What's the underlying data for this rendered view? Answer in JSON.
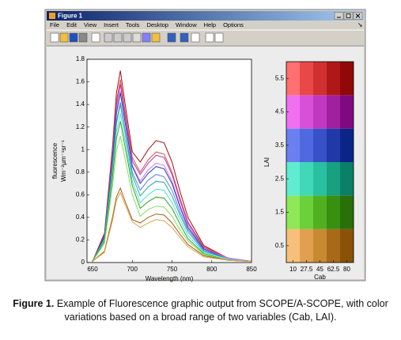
{
  "window": {
    "title": "Figure 1",
    "menu": [
      "File",
      "Edit",
      "View",
      "Insert",
      "Tools",
      "Desktop",
      "Window",
      "Help",
      "Options"
    ]
  },
  "chart_data": [
    {
      "type": "line",
      "xlabel": "Wavelength (nm)",
      "ylabel": [
        "fluorescence",
        "Wm⁻²µm⁻¹sr⁻¹"
      ],
      "x": [
        650,
        665,
        675,
        680,
        685,
        690,
        700,
        710,
        720,
        730,
        740,
        750,
        760,
        770,
        790,
        820,
        850
      ],
      "xlim": [
        643,
        850
      ],
      "xticks": [
        650,
        700,
        750,
        800,
        850
      ],
      "ylim": [
        0,
        1.8
      ],
      "yticks": [
        0,
        0.2,
        0.4,
        0.6,
        0.8,
        1,
        1.2,
        1.4,
        1.6,
        1.8
      ],
      "series": [
        {
          "color": "#a01010",
          "values": [
            0.01,
            0.26,
            1.02,
            1.5,
            1.7,
            1.45,
            0.98,
            0.89,
            1.0,
            1.08,
            1.06,
            0.89,
            0.63,
            0.4,
            0.15,
            0.04,
            0.01
          ]
        },
        {
          "color": "#e05050",
          "values": [
            0.01,
            0.24,
            0.97,
            1.43,
            1.62,
            1.38,
            0.93,
            0.8,
            0.91,
            0.98,
            0.96,
            0.8,
            0.57,
            0.36,
            0.14,
            0.04,
            0.01
          ]
        },
        {
          "color": "#b030b0",
          "values": [
            0.01,
            0.24,
            0.95,
            1.39,
            1.58,
            1.34,
            0.9,
            0.78,
            0.88,
            0.95,
            0.93,
            0.78,
            0.55,
            0.35,
            0.13,
            0.04,
            0.01
          ]
        },
        {
          "color": "#e070e0",
          "values": [
            0.01,
            0.23,
            0.91,
            1.34,
            1.52,
            1.29,
            0.86,
            0.72,
            0.82,
            0.88,
            0.86,
            0.72,
            0.51,
            0.33,
            0.12,
            0.04,
            0.01
          ]
        },
        {
          "color": "#2040c0",
          "values": [
            0.01,
            0.23,
            0.9,
            1.32,
            1.5,
            1.28,
            0.85,
            0.7,
            0.79,
            0.85,
            0.83,
            0.7,
            0.49,
            0.31,
            0.12,
            0.03,
            0.01
          ]
        },
        {
          "color": "#6080f0",
          "values": [
            0.01,
            0.21,
            0.85,
            1.25,
            1.42,
            1.21,
            0.8,
            0.64,
            0.73,
            0.78,
            0.76,
            0.64,
            0.45,
            0.29,
            0.11,
            0.03,
            0.01
          ]
        },
        {
          "color": "#20b0a0",
          "values": [
            0.01,
            0.21,
            0.84,
            1.23,
            1.4,
            1.19,
            0.77,
            0.59,
            0.67,
            0.72,
            0.71,
            0.59,
            0.42,
            0.27,
            0.1,
            0.03,
            0.01
          ]
        },
        {
          "color": "#50e0d0",
          "values": [
            0.01,
            0.2,
            0.79,
            1.16,
            1.32,
            1.12,
            0.72,
            0.53,
            0.6,
            0.65,
            0.64,
            0.53,
            0.38,
            0.24,
            0.09,
            0.03,
            0.01
          ]
        },
        {
          "color": "#30a020",
          "values": [
            0.01,
            0.19,
            0.75,
            1.1,
            1.25,
            1.06,
            0.68,
            0.48,
            0.54,
            0.58,
            0.57,
            0.48,
            0.34,
            0.21,
            0.08,
            0.02,
            0.01
          ]
        },
        {
          "color": "#80e060",
          "values": [
            0.01,
            0.17,
            0.67,
            0.99,
            1.12,
            0.95,
            0.6,
            0.41,
            0.47,
            0.5,
            0.49,
            0.41,
            0.29,
            0.19,
            0.07,
            0.02,
            0.01
          ]
        },
        {
          "color": "#a06010",
          "values": [
            0.01,
            0.1,
            0.4,
            0.58,
            0.66,
            0.56,
            0.38,
            0.35,
            0.4,
            0.43,
            0.42,
            0.35,
            0.25,
            0.16,
            0.06,
            0.02,
            0.01
          ]
        },
        {
          "color": "#e0a050",
          "values": [
            0.01,
            0.09,
            0.37,
            0.55,
            0.62,
            0.53,
            0.36,
            0.31,
            0.35,
            0.38,
            0.37,
            0.31,
            0.22,
            0.14,
            0.05,
            0.02,
            0.01
          ]
        }
      ]
    },
    {
      "type": "heatmap",
      "xlabel": "Cab",
      "ylabel": "LAI",
      "xlim": [
        1.25,
        88.75
      ],
      "xticks": [
        10,
        27.5,
        45,
        62.5,
        80
      ],
      "ylim": [
        0,
        6
      ],
      "yticks": [
        0.5,
        1.5,
        2.5,
        3.5,
        4.5,
        5.5
      ],
      "colors": [
        [
          "#f7c07a",
          "#e0a050",
          "#c88a30",
          "#a86a18",
          "#8a5208"
        ],
        [
          "#8ee858",
          "#6cd03a",
          "#50b020",
          "#389010",
          "#287008"
        ],
        [
          "#60ecd0",
          "#40d8b8",
          "#28c0a0",
          "#18a080",
          "#0a8068"
        ],
        [
          "#6a80f0",
          "#5068e0",
          "#3850c8",
          "#2038a8",
          "#0a2488"
        ],
        [
          "#f070f0",
          "#d850d8",
          "#c038c0",
          "#a020a0",
          "#800880"
        ],
        [
          "#ff7070",
          "#e84848",
          "#d03030",
          "#b01818",
          "#900808"
        ]
      ]
    }
  ],
  "caption": {
    "label": "Figure 1.",
    "text": "Example of Fluorescence graphic output from SCOPE/A-SCOPE, with color variations based on a broad range of two variables (Cab, LAI)."
  }
}
